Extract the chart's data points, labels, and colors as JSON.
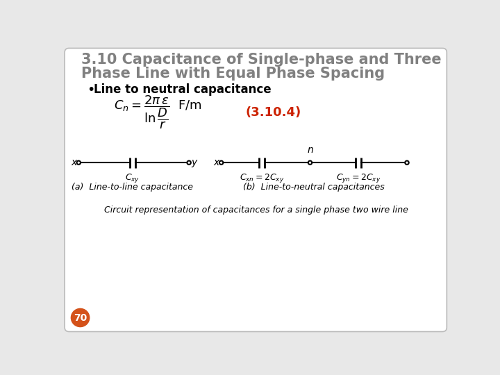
{
  "title_line1": "3.10 Capacitance of Single-phase and Three",
  "title_line2": "Phase Line with Equal Phase Spacing",
  "title_color": "#808080",
  "title_fontsize": 15,
  "bullet_text": "Line to neutral capacitance",
  "bullet_fontsize": 12,
  "equation_number": "(3.10.4)",
  "eq_color": "#cc2200",
  "eq_fontsize": 13,
  "caption": "Circuit representation of capacitances for a single phase two wire line",
  "caption_fontsize": 9,
  "page_number": "70",
  "page_bg": "#d4521a",
  "background": "#e8e8e8",
  "border_color": "#bbbbbb",
  "diagram_label_a": "(a)  Line-to-line capacitance",
  "diagram_label_b": "(b)  Line-to-neutral capacitances",
  "diagram_label_fontsize": 9,
  "cap_label_fontsize": 9,
  "formula_fontsize": 13,
  "wire_lw": 1.5,
  "cap_lw": 2.0,
  "terminal_r": 3.5
}
